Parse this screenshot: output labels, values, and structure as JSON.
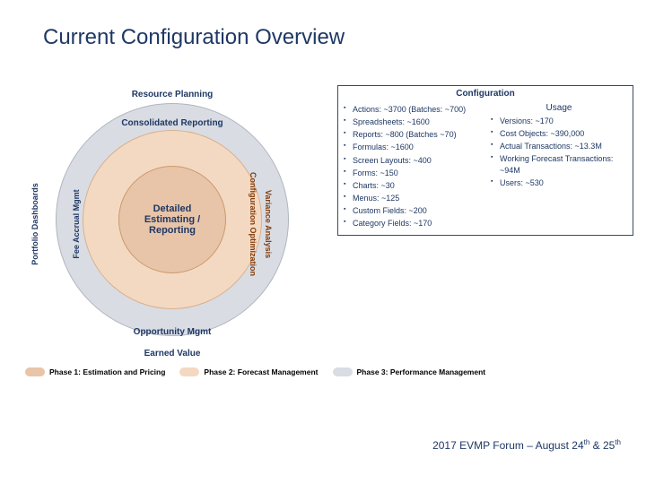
{
  "title": "Current Configuration Overview",
  "diagram": {
    "center_label": "Detailed Estimating / Reporting",
    "ring_labels": {
      "top_outer": "Resource Planning",
      "top_mid": "Consolidated Reporting",
      "bottom_mid": "Opportunity Mgmt",
      "bottom_outer": "Earned Value",
      "left_outer": "Portfolio Dashboards",
      "left_mid": "Fee Accrual Mgmt",
      "right_a": "Variance Analysis",
      "right_b": "Configuration Optimization"
    },
    "colors": {
      "ring_outer_fill": "#d9dce3",
      "ring_outer_border": "#b0b5c0",
      "ring_mid_fill": "#f4d9c2",
      "ring_mid_border": "#d9b08c",
      "ring_inner_fill": "#e8c4a8",
      "ring_inner_border": "#c99a6d",
      "label_color": "#1f3864",
      "accent_color": "#833c0c"
    }
  },
  "config_box": {
    "title": "Configuration",
    "left_items": [
      "Actions: ~3700 (Batches: ~700)",
      "Spreadsheets: ~1600",
      "Reports: ~800 (Batches ~70)",
      "Formulas: ~1600",
      "Screen Layouts: ~400",
      "Forms: ~150",
      "Charts: ~30",
      "Menus: ~125",
      "Custom Fields: ~200",
      "Category Fields: ~170"
    ],
    "usage_title": "Usage",
    "right_items": [
      "Versions: ~170",
      "Cost Objects: ~390,000",
      "Actual Transactions: ~13.3M",
      "Working Forecast Transactions: ~94M",
      "Users: ~530"
    ],
    "border_color": "#3d4a5c"
  },
  "phases": [
    {
      "label": "Phase 1: Estimation and Pricing",
      "swatch": "#e8c4a8"
    },
    {
      "label": "Phase 2: Forecast Management",
      "swatch": "#f4d9c2"
    },
    {
      "label": "Phase 3: Performance Management",
      "swatch": "#d9dce3"
    }
  ],
  "footer_html": "2017 EVMP Forum – August 24<sup>th</sup> & 25<sup>th</sup>"
}
